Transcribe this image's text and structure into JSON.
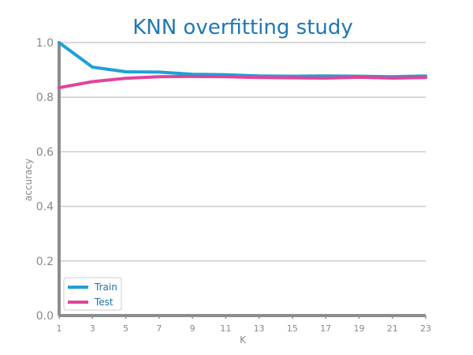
{
  "chart_data": {
    "type": "line",
    "title": "KNN overfitting study",
    "xlabel": "K",
    "ylabel": "accuracy",
    "x": [
      1,
      3,
      5,
      7,
      9,
      11,
      13,
      15,
      17,
      19,
      21,
      23
    ],
    "x_ticks": [
      "1",
      "3",
      "5",
      "7",
      "9",
      "11",
      "13",
      "15",
      "17",
      "19",
      "21",
      "23"
    ],
    "y_ticks": [
      "0.0",
      "0.2",
      "0.4",
      "0.6",
      "0.8",
      "1.0"
    ],
    "xlim": [
      1,
      23
    ],
    "ylim": [
      0,
      1
    ],
    "grid": "horizontal",
    "legend_position": "lower-left",
    "series": [
      {
        "name": "Train",
        "color": "#1f9fd8",
        "values": [
          1.0,
          0.91,
          0.893,
          0.892,
          0.884,
          0.882,
          0.878,
          0.877,
          0.878,
          0.877,
          0.875,
          0.878
        ]
      },
      {
        "name": "Test",
        "color": "#e0449a",
        "values": [
          0.835,
          0.857,
          0.869,
          0.875,
          0.876,
          0.875,
          0.872,
          0.871,
          0.87,
          0.873,
          0.87,
          0.872
        ]
      }
    ]
  }
}
